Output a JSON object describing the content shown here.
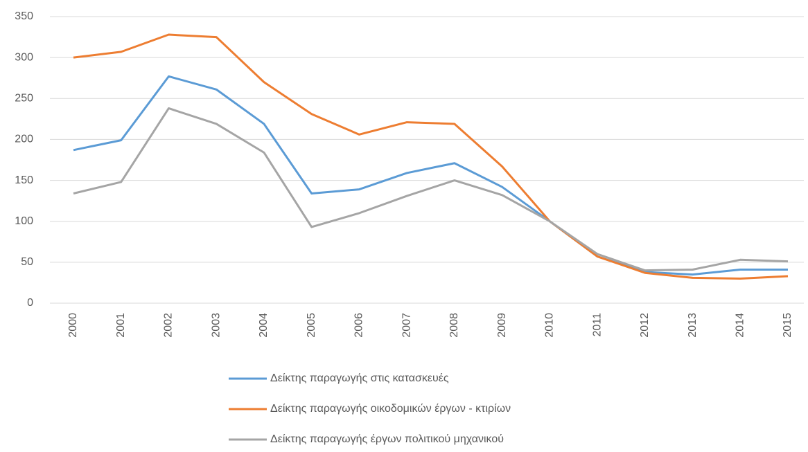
{
  "chart_data": {
    "type": "line",
    "categories": [
      "2000",
      "2001",
      "2002",
      "2003",
      "2004",
      "2005",
      "2006",
      "2007",
      "2008",
      "2009",
      "2010",
      "2011",
      "2012",
      "2013",
      "2014",
      "2015"
    ],
    "series": [
      {
        "name": "Δείκτης παραγωγής στις κατασκευές",
        "color": "#5b9bd5",
        "values": [
          187,
          199,
          277,
          261,
          219,
          134,
          139,
          159,
          171,
          142,
          100,
          57,
          38,
          35,
          41,
          41
        ]
      },
      {
        "name": "Δείκτης παραγωγής οικοδομικών έργων - κτιρίων",
        "color": "#ed7d31",
        "values": [
          300,
          307,
          328,
          325,
          270,
          231,
          206,
          221,
          219,
          167,
          100,
          57,
          37,
          31,
          30,
          33
        ]
      },
      {
        "name": "Δείκτης παραγωγής έργων πολιτικού μηχανικού",
        "color": "#a5a5a5",
        "values": [
          134,
          148,
          238,
          219,
          184,
          93,
          110,
          131,
          150,
          132,
          100,
          60,
          40,
          41,
          53,
          51
        ]
      }
    ],
    "ylim": [
      0,
      350
    ],
    "yticks": [
      0,
      50,
      100,
      150,
      200,
      250,
      300,
      350
    ],
    "grid": true,
    "legend": "bottom"
  }
}
